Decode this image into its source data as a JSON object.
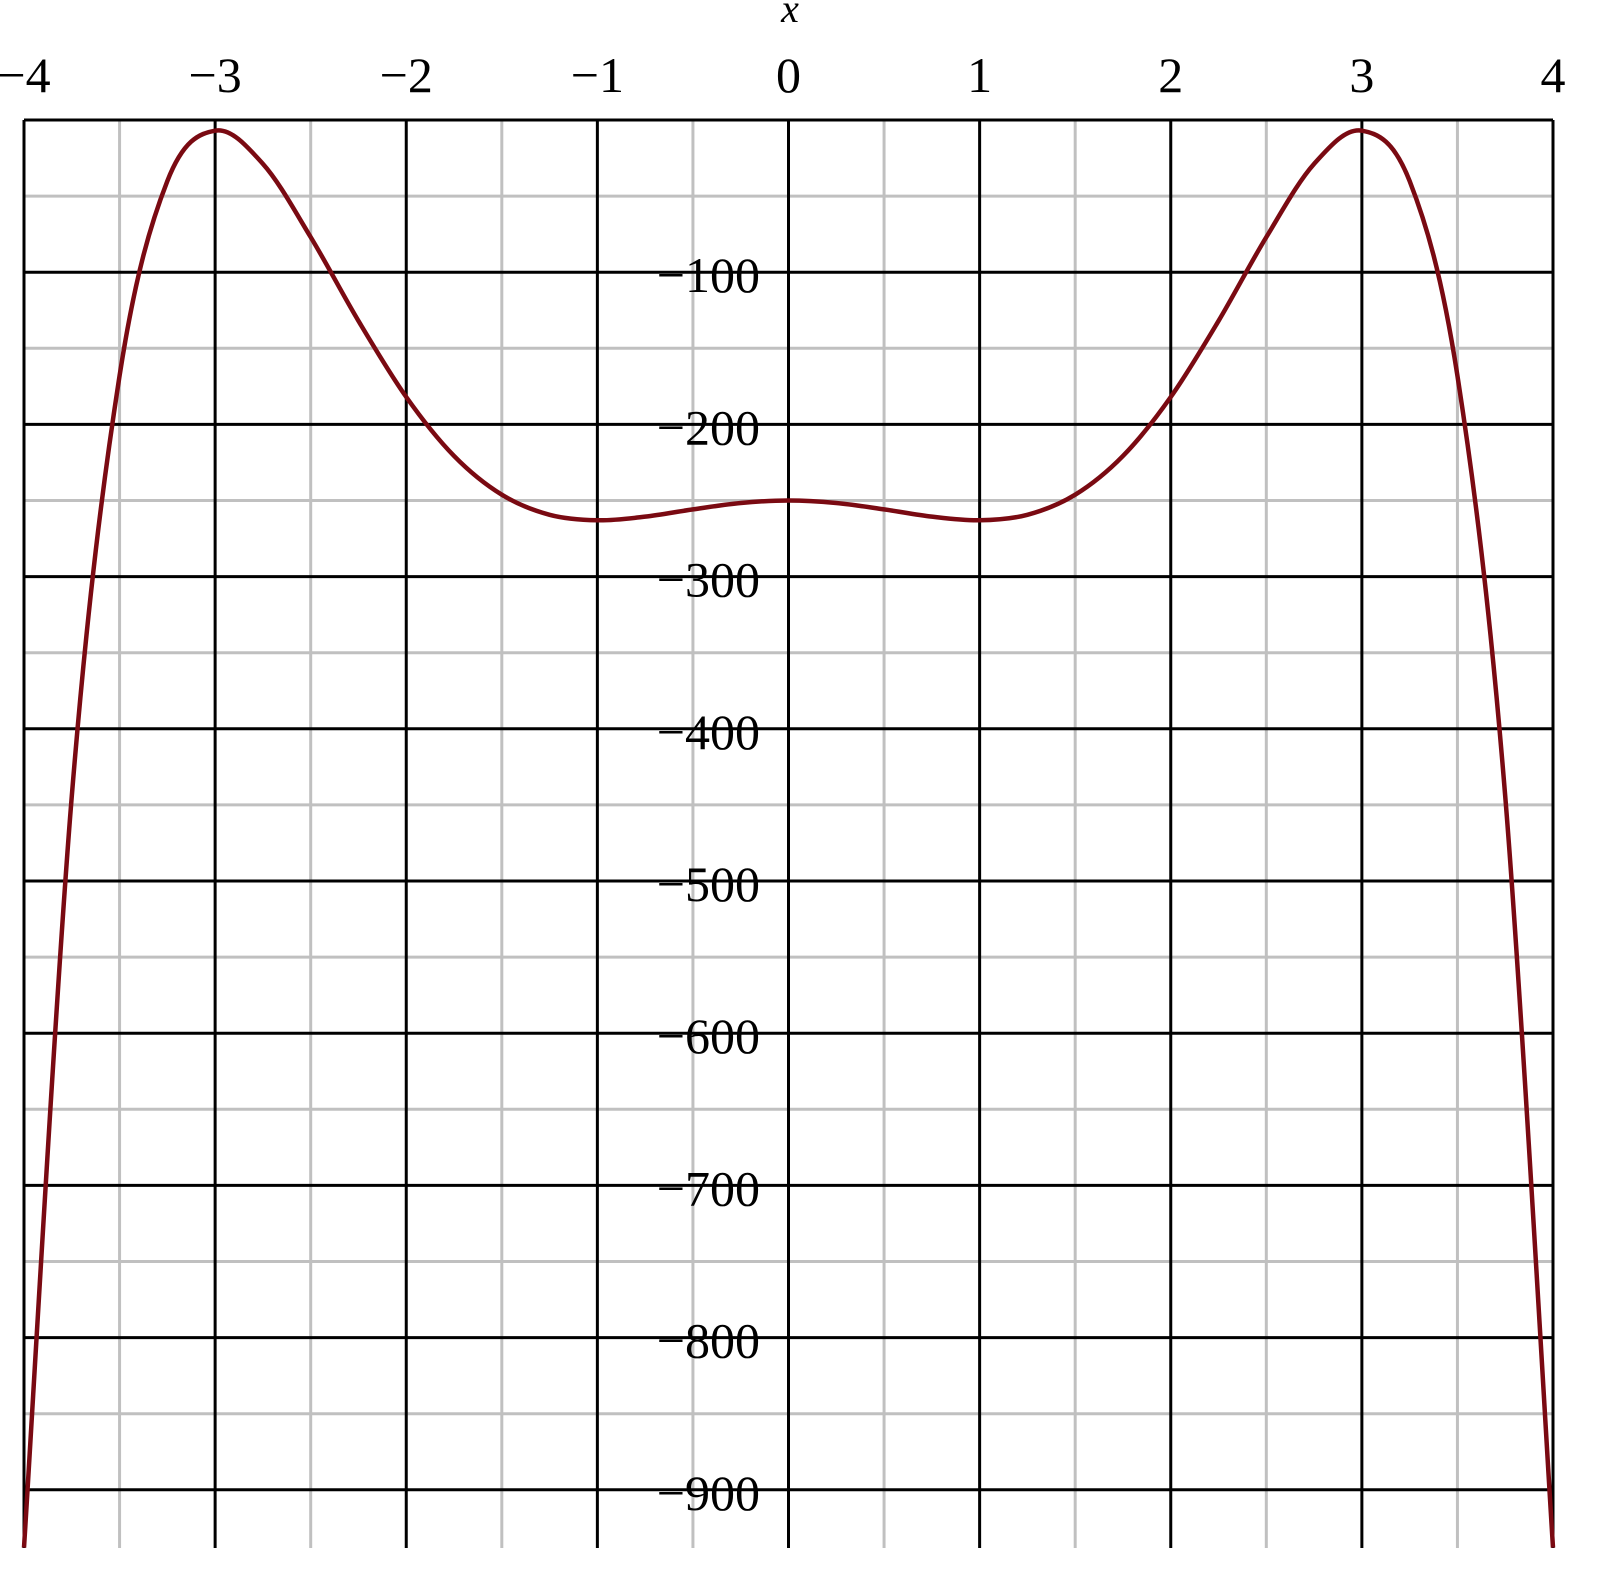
{
  "chart_data": {
    "type": "line",
    "title": "",
    "xlabel": "x",
    "ylabel": "",
    "xlim": [
      -4,
      4
    ],
    "ylim": [
      -938,
      0
    ],
    "x_ticks": [
      -4,
      -3,
      -2,
      -1,
      0,
      1,
      2,
      3,
      4
    ],
    "x_tick_labels": [
      "−4",
      "−3",
      "−2",
      "−1",
      "0",
      "1",
      "2",
      "3",
      "4"
    ],
    "y_ticks": [
      -100,
      -200,
      -300,
      -400,
      -500,
      -600,
      -700,
      -800,
      -900
    ],
    "y_tick_labels": [
      "−100",
      "−200",
      "−300",
      "−400",
      "−500",
      "−600",
      "−700",
      "−800",
      "−900"
    ],
    "x_tick_position": "top",
    "grid": true,
    "major_grid_color": "#000000",
    "minor_grid_color": "#c0c0c0",
    "series": [
      {
        "color": "#7a0a12",
        "x": [
          -4,
          -3.75,
          -3.5,
          -3.25,
          -3,
          -2.75,
          -2.5,
          -2.25,
          -2,
          -1.75,
          -1.5,
          -1.25,
          -1,
          -0.75,
          -0.5,
          -0.25,
          0,
          0.25,
          0.5,
          0.75,
          1,
          1.25,
          1.5,
          1.75,
          2,
          2.25,
          2.5,
          2.75,
          3,
          3.25,
          3.5,
          3.75,
          4
        ],
        "y": [
          -938,
          -444.28,
          -168.08,
          -40.12,
          -7,
          -28.83,
          -76.95,
          -132.01,
          -182,
          -220.73,
          -246.2,
          -259.38,
          -263,
          -260.62,
          -255.83,
          -251.63,
          -250,
          -251.63,
          -255.83,
          -260.62,
          -263,
          -259.38,
          -246.2,
          -220.73,
          -182,
          -132.01,
          -76.95,
          -28.83,
          -7,
          -40.12,
          -168.08,
          -444.28,
          -938
        ]
      }
    ]
  }
}
